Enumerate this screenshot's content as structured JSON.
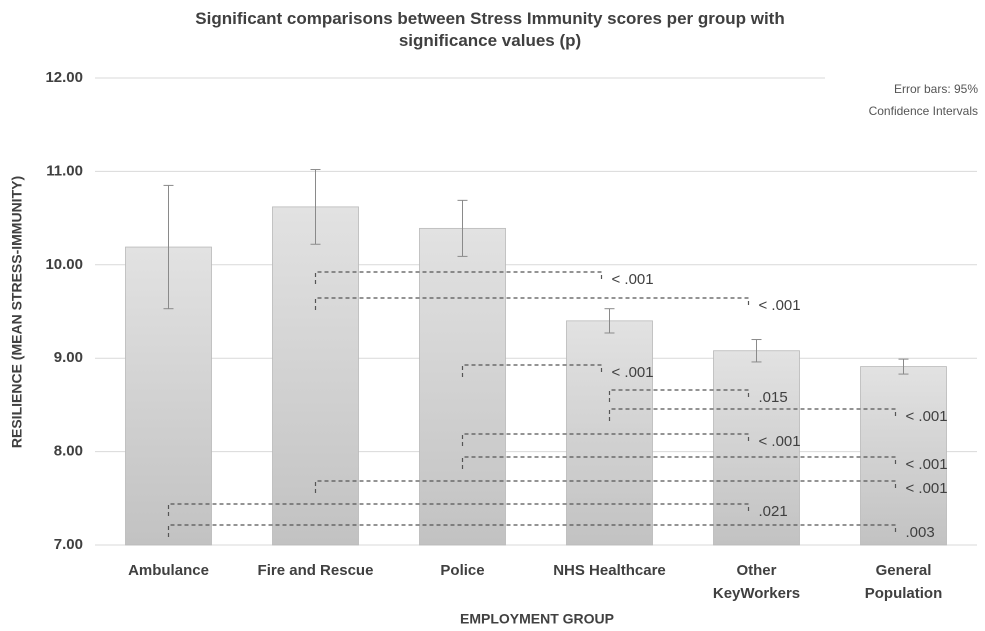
{
  "chart_data": {
    "type": "bar",
    "title": "Significant comparisons between Stress Immunity scores per group with\nsignificance values (p)",
    "note": "Error bars: 95%\nConfidence Intervals",
    "x_label": "EMPLOYMENT GROUP",
    "y_label": "RESILIENCE (MEAN STRESS-IMMUNITY)",
    "categories": [
      "Ambulance",
      "Fire and Rescue",
      "Police",
      "NHS Healthcare",
      "Other\nKeyWorkers",
      "General\nPopulation"
    ],
    "values": [
      10.19,
      10.62,
      10.39,
      9.4,
      9.08,
      8.91
    ],
    "errors": [
      0.66,
      0.4,
      0.3,
      0.13,
      0.12,
      0.08
    ],
    "color": "#d2d2d2",
    "ylim": [
      7,
      12
    ],
    "yticks": [
      {
        "value": 7,
        "label": "7.00"
      },
      {
        "value": 8,
        "label": "8.00"
      },
      {
        "value": 9,
        "label": "9.00"
      },
      {
        "value": 10,
        "label": "10.00"
      },
      {
        "value": 11,
        "label": "11.00"
      },
      {
        "value": 12,
        "label": "12.00"
      }
    ],
    "grid": true,
    "comparisons": [
      {
        "from": "Fire and Rescue",
        "to": "NHS Healthcare",
        "p": "< .001"
      },
      {
        "from": "Fire and Rescue",
        "to": "Other\nKeyWorkers",
        "p": "< .001"
      },
      {
        "from": "Police",
        "to": "NHS Healthcare",
        "p": "< .001"
      },
      {
        "from": "NHS Healthcare",
        "to": "Other\nKeyWorkers",
        "p": ".015"
      },
      {
        "from": "NHS Healthcare",
        "to": "General\nPopulation",
        "p": "< .001"
      },
      {
        "from": "Police",
        "to": "Other\nKeyWorkers",
        "p": "< .001"
      },
      {
        "from": "Police",
        "to": "General\nPopulation",
        "p": "< .001"
      },
      {
        "from": "Fire and Rescue",
        "to": "General\nPopulation",
        "p": "< .001"
      },
      {
        "from": "Ambulance",
        "to": "Other\nKeyWorkers",
        "p": ".021"
      },
      {
        "from": "Ambulance",
        "to": "General\nPopulation",
        "p": ".003"
      }
    ]
  }
}
